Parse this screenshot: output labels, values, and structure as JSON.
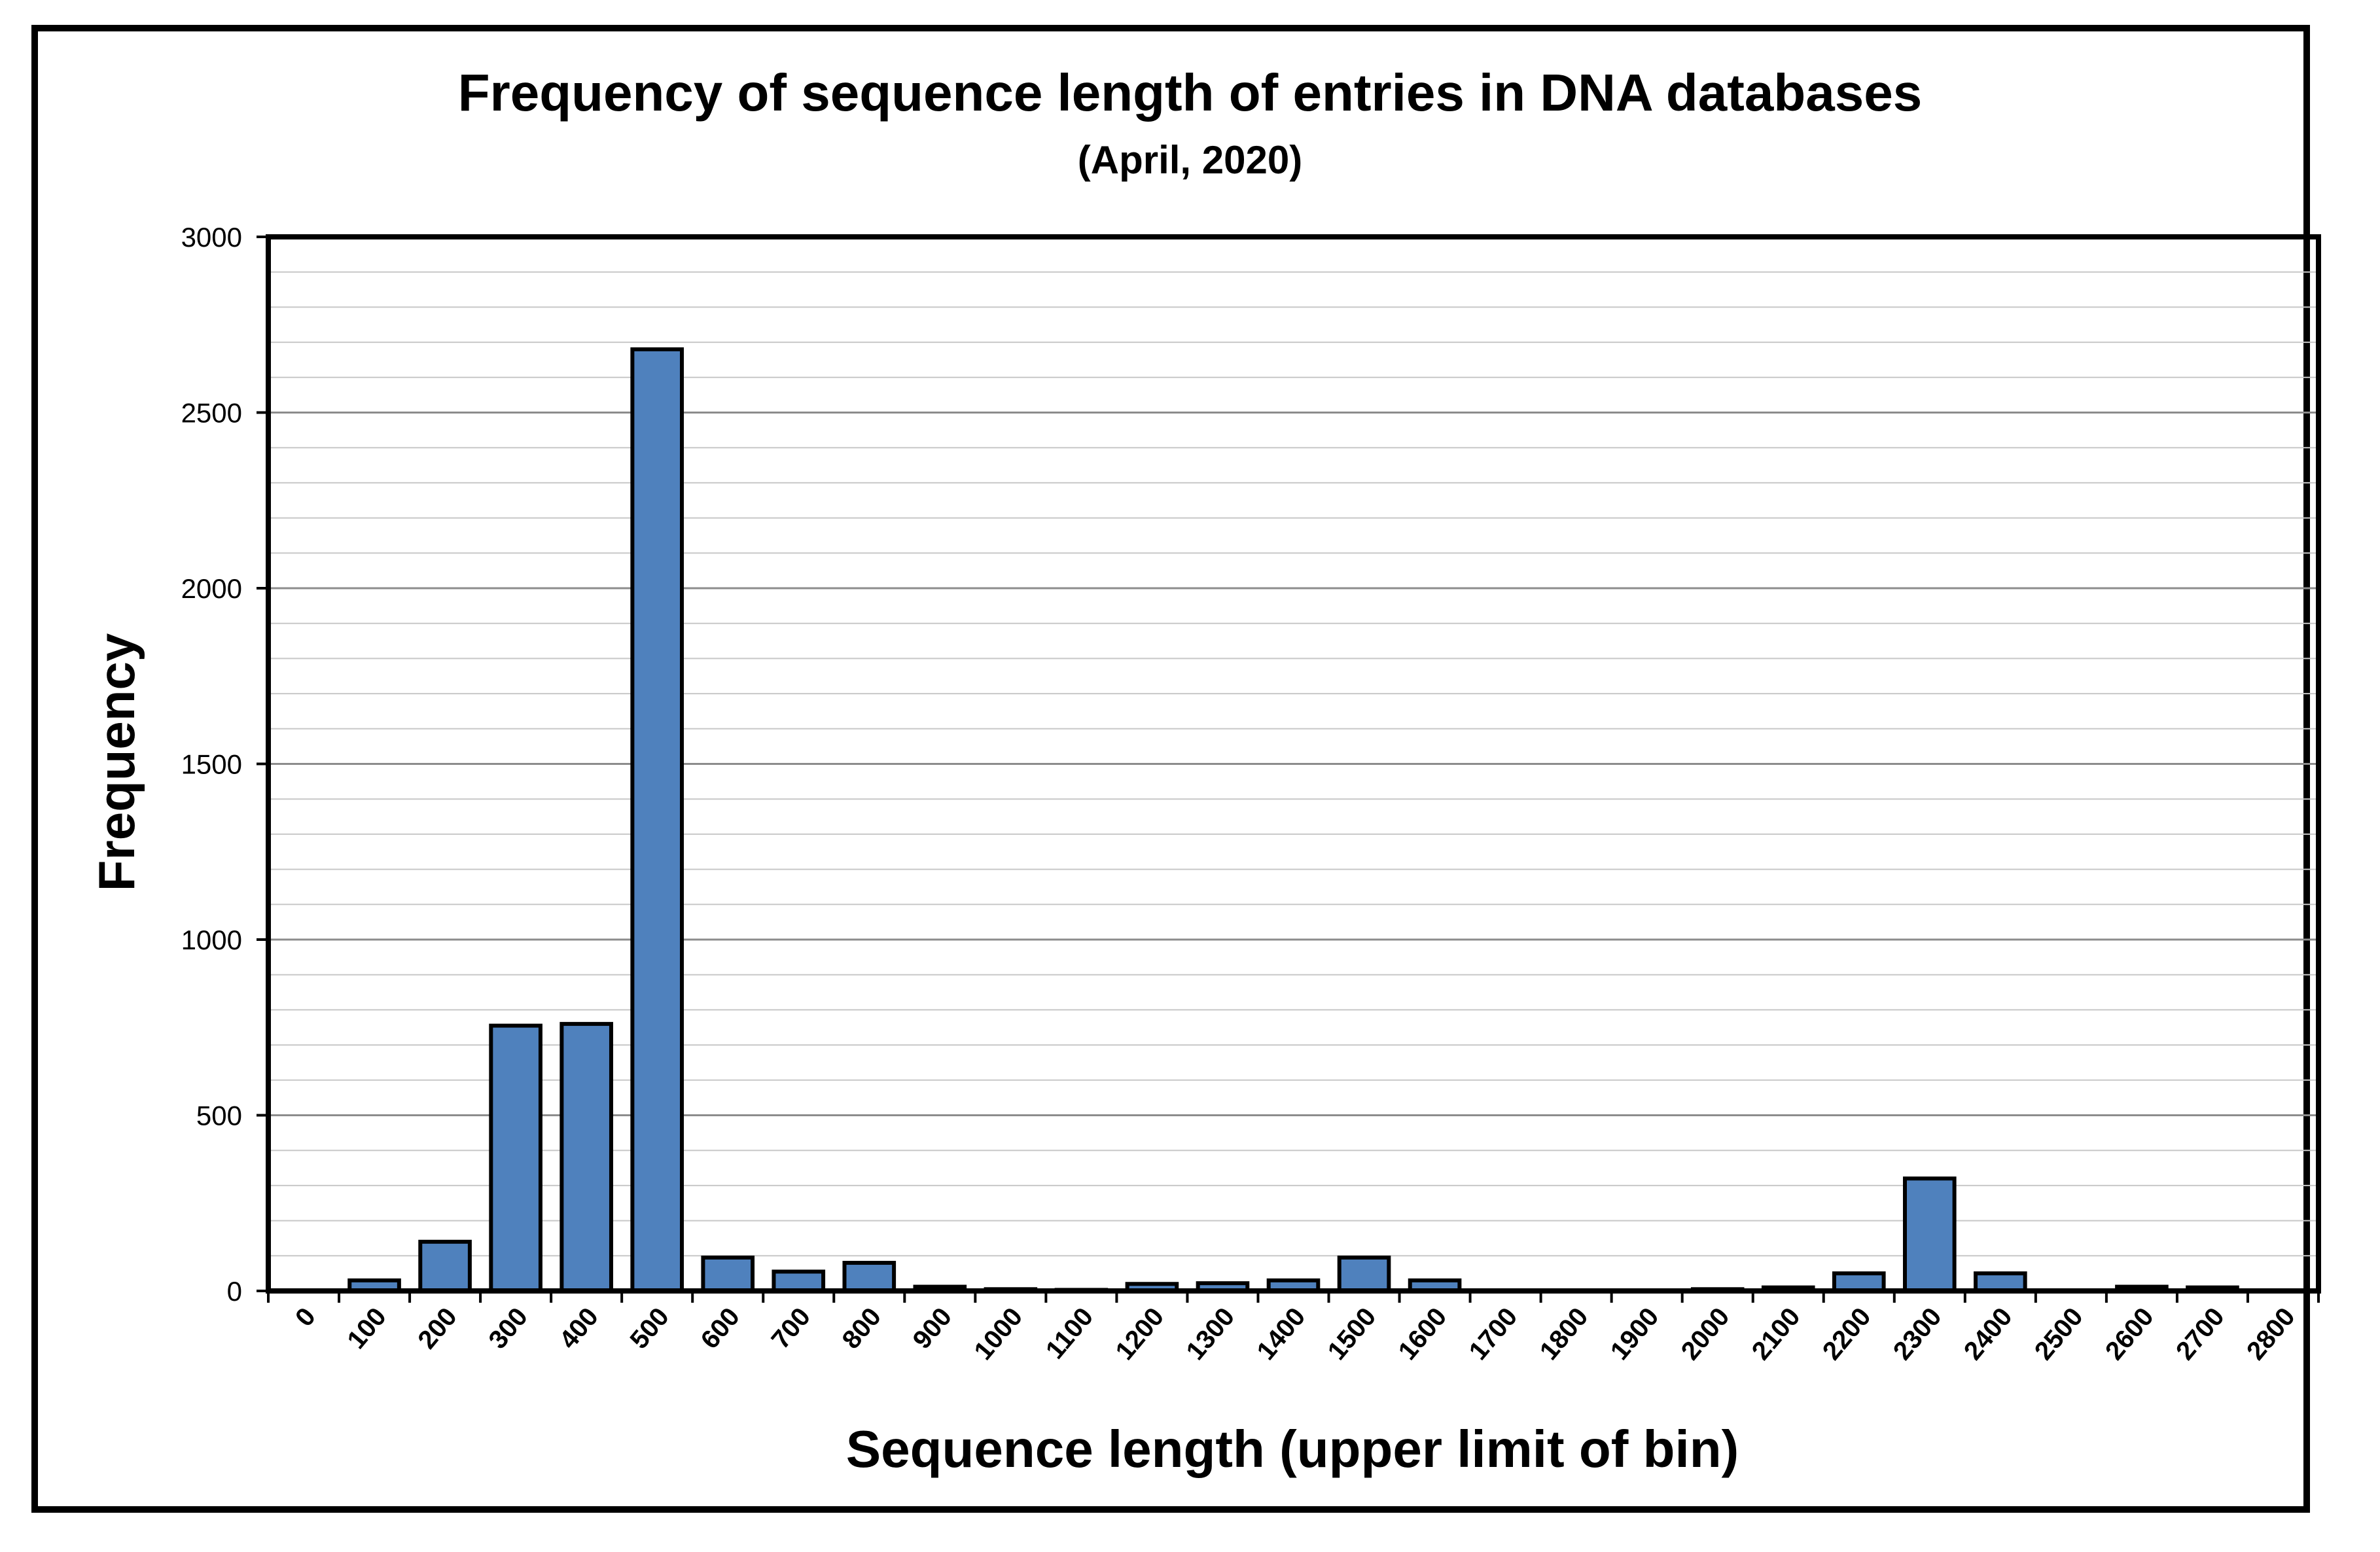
{
  "chart_data": {
    "type": "bar",
    "title": "Frequency of sequence length of entries in DNA databases",
    "subtitle": "(April,  2020)",
    "xlabel": "Sequence length (upper limit of bin)",
    "ylabel": "Frequency",
    "ylim": [
      0,
      3000
    ],
    "yticks": [
      0,
      500,
      1000,
      1500,
      2000,
      2500,
      3000
    ],
    "grid": true,
    "legend": "none",
    "bar_color": "#4f81bd",
    "categories": [
      "0",
      "100",
      "200",
      "300",
      "400",
      "500",
      "600",
      "700",
      "800",
      "900",
      "1000",
      "1100",
      "1200",
      "1300",
      "1400",
      "1500",
      "1600",
      "1700",
      "1800",
      "1900",
      "2000",
      "2100",
      "2200",
      "2300",
      "2400",
      "2500",
      "2600",
      "2700",
      "2800"
    ],
    "values": [
      0,
      30,
      140,
      755,
      760,
      2680,
      95,
      55,
      80,
      12,
      5,
      3,
      20,
      22,
      30,
      95,
      30,
      0,
      0,
      0,
      5,
      10,
      50,
      320,
      50,
      0,
      12,
      10,
      0
    ]
  }
}
